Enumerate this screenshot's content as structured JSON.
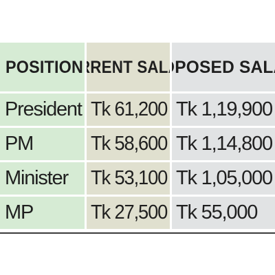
{
  "table": {
    "headers": [
      {
        "line1": "POSITION",
        "line2": ""
      },
      {
        "line1": "CURRENT",
        "line2": "SALARY"
      },
      {
        "line1": "PROPOSED",
        "line2": "SALARY"
      }
    ],
    "rows": [
      {
        "position": "President",
        "current": "Tk 61,200",
        "proposed": "Tk 1,19,900"
      },
      {
        "position": "PM",
        "current": "Tk 58,600",
        "proposed": "Tk 1,14,800"
      },
      {
        "position": "Minister",
        "current": "Tk 53,100",
        "proposed": "Tk 1,05,000"
      },
      {
        "position": "MP",
        "current": "Tk 27,500",
        "proposed": "Tk 55,000"
      }
    ],
    "colors": {
      "position_column": "#d6ebd4",
      "current_column": "#e0e0cf",
      "proposed_column": "#e1e3e4",
      "text": "#1f1f1f"
    }
  }
}
